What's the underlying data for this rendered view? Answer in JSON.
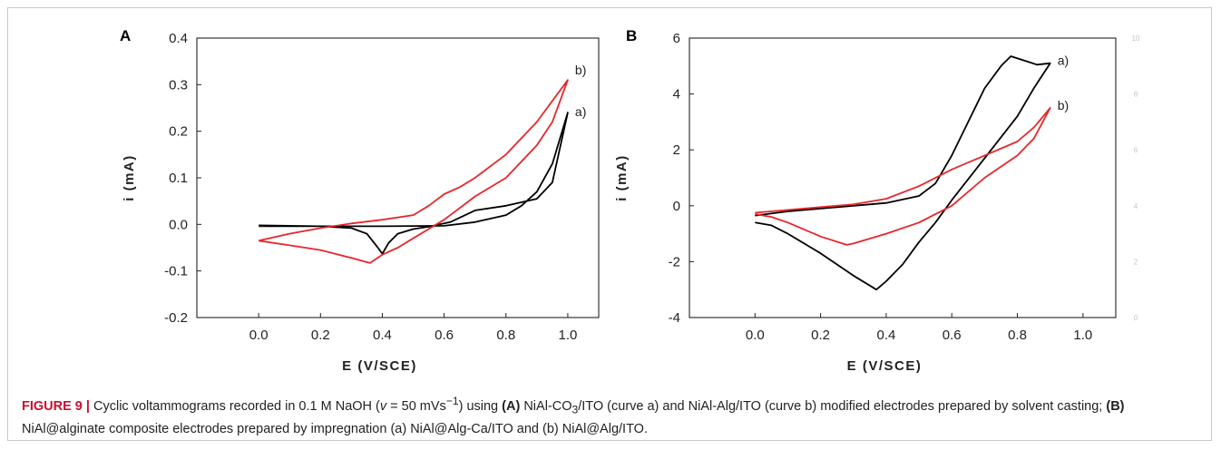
{
  "colors": {
    "curve_a": "#000000",
    "curve_b": "#e8262a",
    "frame": "#c8c8c8"
  },
  "chart_data": [
    {
      "panel": "A",
      "type": "line",
      "xlabel": "E (V/SCE)",
      "ylabel": "i (mA)",
      "xlim": [
        -0.2,
        1.1
      ],
      "ylim": [
        -0.2,
        0.4
      ],
      "xticks": [
        "0.0",
        "0.2",
        "0.4",
        "0.6",
        "0.8",
        "1.0"
      ],
      "yticks": [
        "-0.2",
        "-0.1",
        "0.0",
        "0.1",
        "0.2",
        "0.3",
        "0.4"
      ],
      "series": [
        {
          "name": "a)",
          "color": "#000000",
          "points": [
            [
              0.0,
              -0.004
            ],
            [
              0.2,
              -0.004
            ],
            [
              0.4,
              -0.004
            ],
            [
              0.6,
              -0.003
            ],
            [
              0.7,
              0.005
            ],
            [
              0.8,
              0.02
            ],
            [
              0.85,
              0.04
            ],
            [
              0.9,
              0.07
            ],
            [
              0.95,
              0.13
            ],
            [
              1.0,
              0.24
            ],
            [
              0.95,
              0.09
            ],
            [
              0.9,
              0.055
            ],
            [
              0.8,
              0.04
            ],
            [
              0.7,
              0.03
            ],
            [
              0.62,
              0.005
            ],
            [
              0.55,
              -0.005
            ],
            [
              0.5,
              -0.01
            ],
            [
              0.45,
              -0.02
            ],
            [
              0.42,
              -0.04
            ],
            [
              0.4,
              -0.063
            ],
            [
              0.38,
              -0.045
            ],
            [
              0.35,
              -0.02
            ],
            [
              0.3,
              -0.008
            ],
            [
              0.2,
              -0.004
            ],
            [
              0.0,
              -0.002
            ]
          ]
        },
        {
          "name": "b)",
          "color": "#e8262a",
          "points": [
            [
              0.0,
              -0.035
            ],
            [
              0.1,
              -0.02
            ],
            [
              0.2,
              -0.008
            ],
            [
              0.3,
              0.002
            ],
            [
              0.4,
              0.01
            ],
            [
              0.5,
              0.02
            ],
            [
              0.55,
              0.04
            ],
            [
              0.6,
              0.065
            ],
            [
              0.65,
              0.08
            ],
            [
              0.7,
              0.1
            ],
            [
              0.8,
              0.15
            ],
            [
              0.9,
              0.22
            ],
            [
              1.0,
              0.31
            ],
            [
              0.95,
              0.22
            ],
            [
              0.9,
              0.17
            ],
            [
              0.8,
              0.1
            ],
            [
              0.7,
              0.06
            ],
            [
              0.6,
              0.01
            ],
            [
              0.5,
              -0.03
            ],
            [
              0.45,
              -0.05
            ],
            [
              0.4,
              -0.065
            ],
            [
              0.36,
              -0.083
            ],
            [
              0.3,
              -0.072
            ],
            [
              0.2,
              -0.055
            ],
            [
              0.1,
              -0.045
            ],
            [
              0.0,
              -0.035
            ]
          ]
        }
      ]
    },
    {
      "panel": "B",
      "type": "line",
      "xlabel": "E (V/SCE)",
      "ylabel": "i (mA)",
      "xlim": [
        -0.2,
        1.1
      ],
      "ylim": [
        -4,
        6
      ],
      "xticks": [
        "0.0",
        "0.2",
        "0.4",
        "0.6",
        "0.8",
        "1.0"
      ],
      "yticks": [
        "-4",
        "-2",
        "0",
        "2",
        "4",
        "6"
      ],
      "faint_right_ticks": [
        "10",
        "8",
        "6",
        "4",
        "2",
        "0"
      ],
      "series": [
        {
          "name": "a)",
          "color": "#000000",
          "points": [
            [
              0.0,
              -0.35
            ],
            [
              0.1,
              -0.2
            ],
            [
              0.2,
              -0.1
            ],
            [
              0.3,
              0.0
            ],
            [
              0.4,
              0.1
            ],
            [
              0.5,
              0.35
            ],
            [
              0.55,
              0.8
            ],
            [
              0.6,
              1.8
            ],
            [
              0.65,
              3.0
            ],
            [
              0.7,
              4.2
            ],
            [
              0.75,
              5.0
            ],
            [
              0.78,
              5.35
            ],
            [
              0.82,
              5.2
            ],
            [
              0.86,
              5.05
            ],
            [
              0.9,
              5.1
            ],
            [
              0.85,
              4.2
            ],
            [
              0.8,
              3.2
            ],
            [
              0.7,
              1.7
            ],
            [
              0.6,
              0.2
            ],
            [
              0.55,
              -0.6
            ],
            [
              0.5,
              -1.3
            ],
            [
              0.45,
              -2.1
            ],
            [
              0.4,
              -2.7
            ],
            [
              0.37,
              -3.0
            ],
            [
              0.3,
              -2.5
            ],
            [
              0.2,
              -1.7
            ],
            [
              0.1,
              -1.0
            ],
            [
              0.05,
              -0.7
            ],
            [
              0.0,
              -0.6
            ]
          ]
        },
        {
          "name": "b)",
          "color": "#e8262a",
          "points": [
            [
              0.0,
              -0.25
            ],
            [
              0.1,
              -0.15
            ],
            [
              0.2,
              -0.05
            ],
            [
              0.3,
              0.05
            ],
            [
              0.4,
              0.25
            ],
            [
              0.5,
              0.7
            ],
            [
              0.6,
              1.3
            ],
            [
              0.7,
              1.8
            ],
            [
              0.8,
              2.3
            ],
            [
              0.85,
              2.8
            ],
            [
              0.9,
              3.5
            ],
            [
              0.85,
              2.4
            ],
            [
              0.8,
              1.8
            ],
            [
              0.7,
              1.0
            ],
            [
              0.6,
              0.0
            ],
            [
              0.5,
              -0.6
            ],
            [
              0.4,
              -1.0
            ],
            [
              0.3,
              -1.35
            ],
            [
              0.28,
              -1.4
            ],
            [
              0.2,
              -1.1
            ],
            [
              0.1,
              -0.6
            ],
            [
              0.05,
              -0.4
            ],
            [
              0.0,
              -0.3
            ]
          ]
        }
      ]
    }
  ],
  "caption": {
    "figure_number": "FIGURE 9 |",
    "t1": " Cyclic voltammograms recorded in 0.1 M NaOH (",
    "nu_symbol": "v",
    "t2": " = 50 mVs",
    "t2_sup": "−1",
    "t3": ") using ",
    "ref_a": "(A)",
    "t4": " NiAl-CO",
    "t4_sub": "3",
    "t5": "/ITO (curve a) and NiAl-Alg/ITO (curve b) modified electrodes prepared by solvent casting; ",
    "ref_b": "(B)",
    "t6": " NiAl@alginate composite electrodes prepared by impregnation (a) NiAl@Alg-Ca/ITO and (b) NiAl@Alg/ITO."
  }
}
